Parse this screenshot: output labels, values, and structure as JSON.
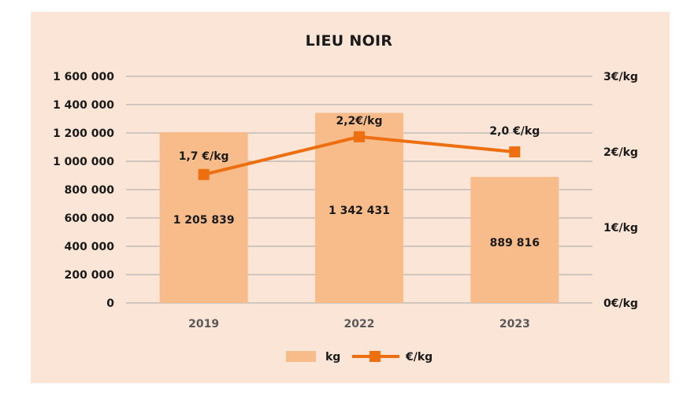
{
  "chart_data": {
    "type": "bar",
    "title": "LIEU NOIR",
    "categories": [
      "2019",
      "2022",
      "2023"
    ],
    "series": [
      {
        "name": "kg",
        "type": "bar",
        "axis": "left",
        "values": [
          1205839,
          1342431,
          889816
        ],
        "labels": [
          "1 205 839",
          "1 342 431",
          "889 816"
        ],
        "color": "#f8bc8b"
      },
      {
        "name": "€/kg",
        "type": "line",
        "axis": "right",
        "values": [
          1.7,
          2.2,
          2.0
        ],
        "labels": [
          "1,7 €/kg",
          "2,2€/kg",
          "2,0 €/kg"
        ],
        "color": "#ed6f0f"
      }
    ],
    "y_left": {
      "lim": [
        0,
        1600000
      ],
      "ticks": [
        0,
        200000,
        400000,
        600000,
        800000,
        1000000,
        1200000,
        1400000,
        1600000
      ],
      "tick_labels": [
        "0",
        "200 000",
        "400 000",
        "600 000",
        "800 000",
        "1 000 000",
        "1 200 000",
        "1 400 000",
        "1 600 000"
      ]
    },
    "y_right": {
      "lim": [
        0,
        3
      ],
      "ticks": [
        0,
        1,
        2,
        3
      ],
      "tick_labels": [
        "0€/kg",
        "1€/kg",
        "2€/kg",
        "3€/kg"
      ]
    },
    "grid": true,
    "legend": "bottom-center",
    "background": "#fbe5d6",
    "gridline_color": "#a6a6a6"
  }
}
